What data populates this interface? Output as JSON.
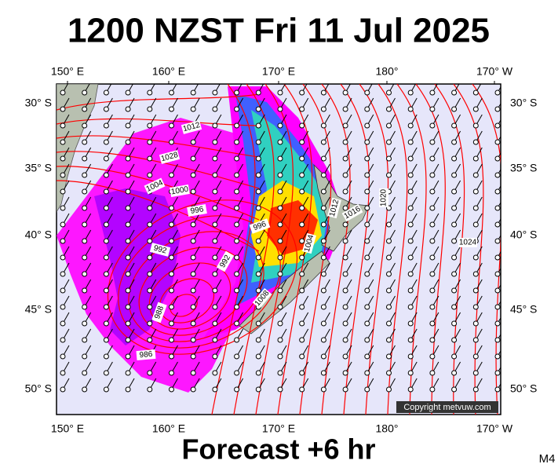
{
  "header": {
    "title": "1200 NZST Fri 11 Jul 2025"
  },
  "axes": {
    "longitudes": [
      "150° E",
      "160° E",
      "170° E",
      "180°",
      "170° W"
    ],
    "latitudes": [
      "30° S",
      "35° S",
      "40° S",
      "45° S",
      "50° S"
    ]
  },
  "map": {
    "isobar_labels": [
      "1012",
      "1028",
      "1004",
      "1000",
      "996",
      "996",
      "992",
      "992",
      "988",
      "986",
      "1004",
      "1012",
      "1016",
      "1020",
      "1024",
      "1008"
    ],
    "copyright": "Copyright metvuw.com"
  },
  "footer": {
    "forecast": "Forecast +6 hr",
    "model": "M4"
  }
}
